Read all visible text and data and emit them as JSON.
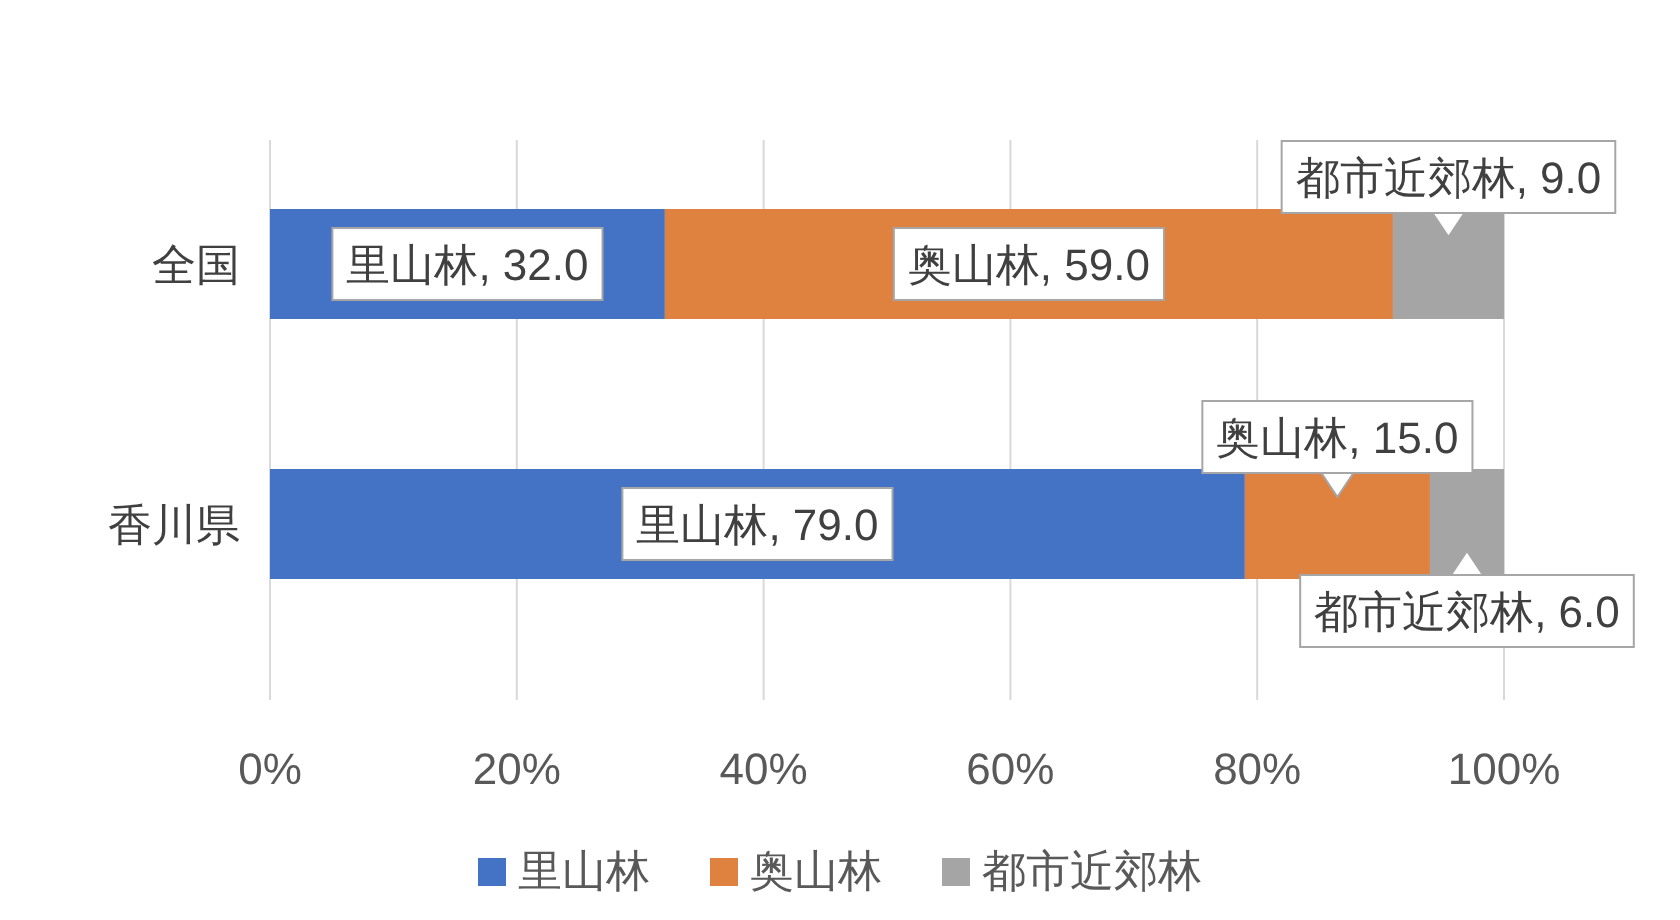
{
  "chart_data": {
    "type": "bar",
    "orientation": "horizontal",
    "stacked": true,
    "categories": [
      "全国",
      "香川県"
    ],
    "series": [
      {
        "name": "里山林",
        "color": "#4472c4",
        "values": [
          32.0,
          79.0
        ],
        "value_labels": [
          "里山林, 32.0",
          "里山林, 79.0"
        ]
      },
      {
        "name": "奥山林",
        "color": "#e0823f",
        "values": [
          59.0,
          15.0
        ],
        "value_labels": [
          "奥山林, 59.0",
          "奥山林, 15.0"
        ]
      },
      {
        "name": "都市近郊林",
        "color": "#a5a5a5",
        "values": [
          9.0,
          6.0
        ],
        "value_labels": [
          "都市近郊林, 9.0",
          "都市近郊林, 6.0"
        ]
      }
    ],
    "xlim": [
      0,
      100
    ],
    "xticks": [
      {
        "value": 0,
        "label": "0%"
      },
      {
        "value": 20,
        "label": "20%"
      },
      {
        "value": 40,
        "label": "40%"
      },
      {
        "value": 60,
        "label": "60%"
      },
      {
        "value": 80,
        "label": "80%"
      },
      {
        "value": 100,
        "label": "100%"
      }
    ],
    "grid": "x",
    "legend": "bottom"
  }
}
